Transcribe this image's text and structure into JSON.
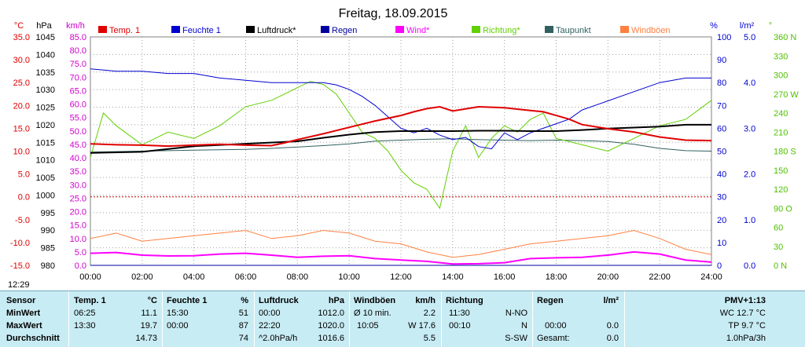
{
  "chart_data": {
    "type": "line",
    "title": "Freitag, 18.09.2015",
    "x_ticks": [
      "00:00",
      "02:00",
      "04:00",
      "06:00",
      "08:00",
      "10:00",
      "12:00",
      "14:00",
      "16:00",
      "18:00",
      "20:00",
      "22:00",
      "24:00"
    ],
    "axes": {
      "temp": {
        "unit": "°C",
        "color": "#e00000",
        "range": [
          -15,
          35
        ],
        "ticks": [
          "35.0",
          "30.0",
          "25.0",
          "20.0",
          "15.0",
          "10.0",
          "5.0",
          "0.0",
          "-5.0",
          "-10.0",
          "-15.0"
        ]
      },
      "pressure": {
        "unit": "hPa",
        "color": "#000000",
        "range": [
          980,
          1045
        ],
        "ticks": [
          "1045",
          "1040",
          "1035",
          "1030",
          "1025",
          "1020",
          "1015",
          "1010",
          "1005",
          "1000",
          "995",
          "990",
          "985",
          "980"
        ]
      },
      "wind": {
        "unit": "km/h",
        "color": "#d000d0",
        "range": [
          0,
          85
        ],
        "ticks": [
          "85.0",
          "80.0",
          "75.0",
          "70.0",
          "65.0",
          "60.0",
          "55.0",
          "50.0",
          "45.0",
          "40.0",
          "35.0",
          "30.0",
          "25.0",
          "20.0",
          "15.0",
          "10.0",
          "5.0",
          "0.0"
        ]
      },
      "humidity": {
        "unit": "%",
        "color": "#0000d0",
        "range": [
          0,
          100
        ],
        "ticks": [
          "100",
          "90",
          "80",
          "70",
          "60",
          "50",
          "40",
          "30",
          "20",
          "10",
          "0"
        ]
      },
      "rain": {
        "unit": "l/m²",
        "color": "#0000d0",
        "range": [
          0,
          5
        ],
        "ticks": [
          "5.0",
          "4.0",
          "3.0",
          "2.0",
          "1.0",
          "0.0"
        ]
      },
      "direction": {
        "unit": "°",
        "color": "#50c000",
        "range": [
          0,
          360
        ],
        "ticks": [
          "360 N",
          "330",
          "300",
          "270 W",
          "240",
          "210",
          "180 S",
          "150",
          "120",
          "90 O",
          "60",
          "30",
          "0 N"
        ]
      }
    },
    "series": [
      {
        "name": "Temp. 1",
        "color": "#e00000",
        "axis": "temp",
        "x": [
          0,
          1,
          2,
          3,
          4,
          5,
          6,
          7,
          7.5,
          8,
          9,
          10,
          11,
          12,
          12.5,
          13,
          13.5,
          14,
          15,
          16,
          17,
          17.5,
          18,
          18.5,
          19,
          20,
          21,
          22,
          23,
          24
        ],
        "values": [
          11.6,
          11.4,
          11.3,
          11.1,
          11.3,
          11.5,
          11.3,
          11.2,
          11.8,
          12.5,
          13.8,
          15.2,
          16.6,
          17.8,
          18.6,
          19.3,
          19.7,
          18.8,
          19.7,
          19.5,
          18.9,
          18.6,
          17.8,
          17.0,
          15.8,
          14.9,
          14.2,
          13.1,
          12.4,
          12.3
        ]
      },
      {
        "name": "Feuchte 1",
        "color": "#0000d0",
        "axis": "humidity",
        "x": [
          0,
          1,
          2,
          3,
          4,
          4.5,
          5,
          6,
          7,
          8,
          9,
          9.5,
          10,
          10.5,
          11,
          11.5,
          12,
          12.5,
          13,
          13.5,
          14,
          14.5,
          15,
          15.5,
          16,
          16.5,
          17,
          17.5,
          18,
          18.5,
          19,
          20,
          21,
          22,
          23,
          24
        ],
        "values": [
          86,
          85,
          85,
          84,
          84,
          83,
          82,
          81,
          80,
          80,
          80,
          79,
          77,
          74,
          70,
          65,
          60,
          58,
          60,
          57,
          55,
          56,
          52,
          51,
          58,
          55,
          58,
          60,
          62,
          64,
          68,
          72,
          76,
          80,
          82,
          82
        ]
      },
      {
        "name": "Luftdruck*",
        "color": "#000000",
        "axis": "pressure",
        "x": [
          0,
          2,
          4,
          6,
          8,
          9,
          10,
          11,
          12,
          13,
          14,
          15,
          16,
          17,
          18,
          19,
          20,
          21,
          22,
          23,
          24
        ],
        "values": [
          1012.0,
          1012.3,
          1013.9,
          1014.6,
          1015.3,
          1016.3,
          1017.2,
          1017.9,
          1018.2,
          1018.2,
          1018.2,
          1018.3,
          1018.3,
          1018.2,
          1018.2,
          1018.5,
          1018.9,
          1019.2,
          1019.5,
          1020.0,
          1020.0
        ]
      },
      {
        "name": "Regen",
        "color": "#0000a0",
        "axis": "rain",
        "x": [
          0,
          24
        ],
        "values": [
          0.0,
          0.0
        ]
      },
      {
        "name": "Wind*",
        "color": "#ff00ff",
        "axis": "wind",
        "x": [
          0,
          1,
          2,
          3,
          4,
          5,
          6,
          7,
          8,
          9,
          10,
          11,
          12,
          13,
          14,
          15,
          16,
          17,
          18,
          19,
          20,
          21,
          22,
          23,
          24
        ],
        "values": [
          4.5,
          4.8,
          3.8,
          3.5,
          3.6,
          4.2,
          4.5,
          3.8,
          3.0,
          3.4,
          3.6,
          2.5,
          2.0,
          1.5,
          0.5,
          0.6,
          1.0,
          2.5,
          2.8,
          3.0,
          3.8,
          5.0,
          4.2,
          2.0,
          1.2
        ]
      },
      {
        "name": "Richtung*",
        "color": "#60d000",
        "axis": "direction",
        "x": [
          0,
          0.5,
          1,
          2,
          3,
          4,
          5,
          6,
          7,
          8,
          8.5,
          9,
          9.5,
          10,
          10.5,
          11,
          11.5,
          12,
          12.5,
          13,
          13.5,
          14,
          14.5,
          15,
          15.5,
          16,
          16.5,
          17,
          17.5,
          18,
          19,
          20,
          21,
          22,
          23,
          24
        ],
        "values": [
          170,
          240,
          220,
          190,
          210,
          200,
          220,
          250,
          260,
          280,
          290,
          285,
          270,
          240,
          210,
          200,
          180,
          150,
          130,
          120,
          90,
          180,
          220,
          170,
          200,
          220,
          210,
          230,
          240,
          200,
          190,
          180,
          200,
          220,
          230,
          260
        ]
      },
      {
        "name": "Taupunkt",
        "color": "#306060",
        "axis": "temp",
        "x": [
          0,
          2,
          4,
          6,
          7,
          8,
          9,
          10,
          11,
          12,
          13,
          14,
          15,
          16,
          17,
          18,
          19,
          20,
          21,
          22,
          23,
          24
        ],
        "values": [
          9.8,
          10.0,
          10.2,
          10.4,
          10.6,
          10.9,
          11.2,
          11.6,
          12.2,
          12.4,
          12.6,
          12.7,
          12.5,
          12.4,
          12.3,
          12.4,
          12.3,
          12.1,
          11.5,
          10.6,
          10.1,
          10.0
        ]
      },
      {
        "name": "Windböen",
        "color": "#ff8040",
        "axis": "wind",
        "x": [
          0,
          1,
          2,
          3,
          4,
          5,
          6,
          7,
          8,
          9,
          10,
          11,
          12,
          13,
          14,
          15,
          16,
          17,
          18,
          19,
          20,
          21,
          22,
          23,
          24
        ],
        "values": [
          10,
          12,
          9,
          10,
          11,
          12,
          13,
          10,
          11,
          13,
          12,
          9,
          8,
          5,
          3,
          4,
          6,
          8,
          9,
          10,
          11,
          13,
          10,
          6,
          4
        ]
      }
    ],
    "grid": true,
    "legend_position": "top"
  },
  "timebar": {
    "time": "12:29"
  },
  "table": {
    "headers": {
      "sensor": "Sensor",
      "temp": "Temp. 1",
      "temp_unit": "°C",
      "hum": "Feuchte 1",
      "hum_unit": "%",
      "press": "Luftdruck",
      "press_unit": "hPa",
      "wind": "Windböen",
      "wind_unit": "km/h",
      "dir": "Richtung",
      "rain": "Regen",
      "rain_unit": "l/m²",
      "pmv": "PMV+1:13"
    },
    "rows": {
      "min_label": "MinWert",
      "max_label": "MaxWert",
      "avg_label": "Durchschnitt"
    },
    "temp": {
      "min_time": "06:25",
      "min_val": "11.1",
      "max_time": "13:30",
      "max_val": "19.7",
      "avg": "14.73"
    },
    "hum": {
      "min_time": "15:30",
      "min_val": "51",
      "max_time": "00:00",
      "max_val": "87",
      "avg": "74"
    },
    "press": {
      "min_time": "00:00",
      "min_val": "1012.0",
      "max_time": "22:20",
      "max_val": "1020.0",
      "trend": "^2.0hPa/h",
      "avg": "1016.6"
    },
    "wind": {
      "r1_label": "Ø 10 min.",
      "r1_val": "2.2",
      "r2_time": "10:05",
      "r2_val": "W 17.6",
      "avg": "5.5"
    },
    "dir": {
      "r1_time": "11:30",
      "r1_val": "N-NO",
      "r2_time": "00:10",
      "r2_val": "N",
      "avg": "S-SW"
    },
    "rain": {
      "r2_time": "00:00",
      "r2_val": "0.0",
      "r3_label": "Gesamt:",
      "r3_val": "0.0"
    },
    "pmv": {
      "wc": "WC 12.7 °C",
      "tp": "TP 9.7 °C",
      "trend": "1.0hPa/3h"
    }
  }
}
